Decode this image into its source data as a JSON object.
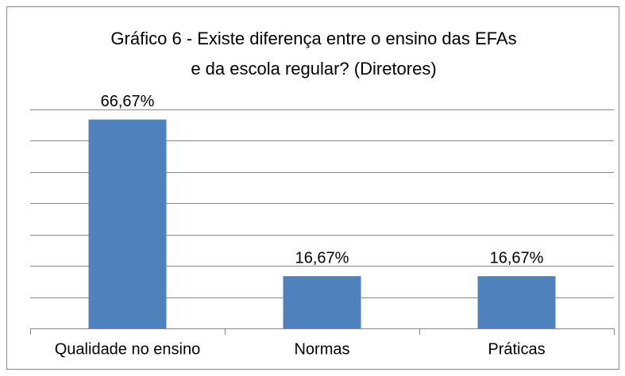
{
  "chart_data": {
    "type": "bar",
    "title_lines": [
      "Gráfico 6 - Existe diferença entre o ensino das EFAs",
      "e da escola regular? (Diretores)"
    ],
    "categories": [
      "Qualidade no ensino",
      "Normas",
      "Práticas"
    ],
    "values": [
      66.67,
      16.67,
      16.67
    ],
    "value_labels": [
      "66,67%",
      "16,67%",
      "16,67%"
    ],
    "color": "#4f81bd",
    "ylim": [
      0,
      70
    ],
    "yticks": [
      0,
      10,
      20,
      30,
      40,
      50,
      60,
      70
    ],
    "grid": true
  }
}
